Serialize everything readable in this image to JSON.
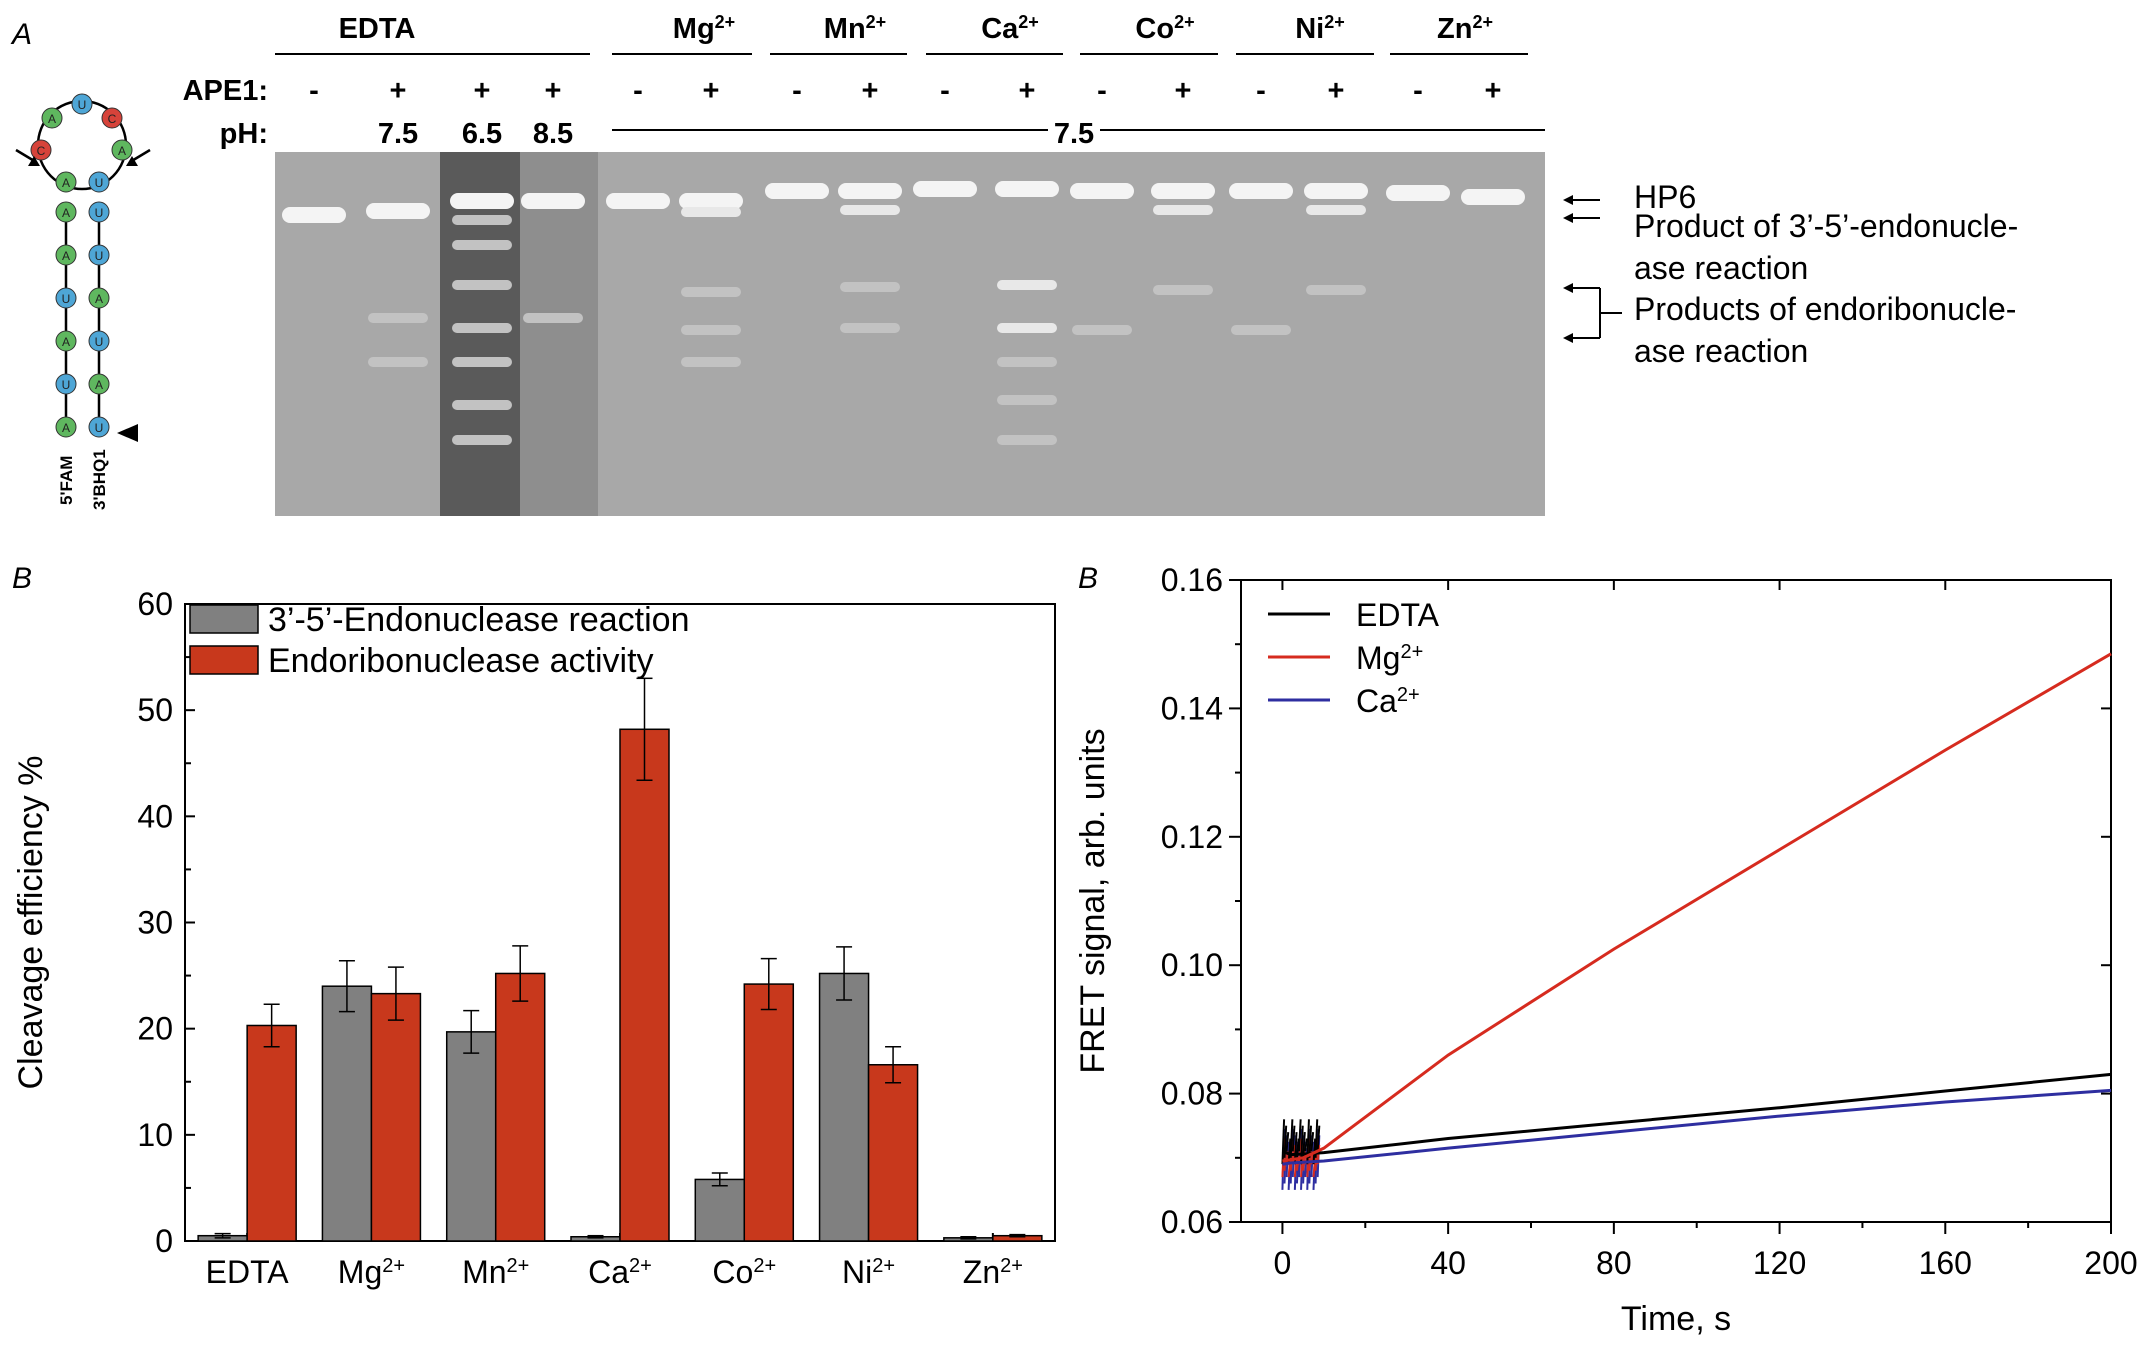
{
  "panelA": {
    "label": "A",
    "groups": [
      {
        "name": "EDTA",
        "sup": ""
      },
      {
        "name": "Mg",
        "sup": "2+"
      },
      {
        "name": "Mn",
        "sup": "2+"
      },
      {
        "name": "Ca",
        "sup": "2+"
      },
      {
        "name": "Co",
        "sup": "2+"
      },
      {
        "name": "Ni",
        "sup": "2+"
      },
      {
        "name": "Zn",
        "sup": "2+"
      }
    ],
    "ape1_label": "APE1:",
    "ph_label": "pH:",
    "ape1_marks": [
      "-",
      "+",
      "+",
      "+",
      "-",
      "+",
      "-",
      "+",
      "-",
      "+",
      "-",
      "+",
      "-",
      "+",
      "-",
      "+"
    ],
    "ph_marks": [
      "7.5",
      "6.5",
      "8.5"
    ],
    "ph_common": "7.5",
    "hairpin": {
      "five_prime": "5'FAM",
      "three_prime": "3'BHQ1"
    },
    "band_labels": {
      "hp6": "HP6",
      "product_3_5": [
        "Product of 3’-5’-endonucle-",
        "ase reaction"
      ],
      "product_endo": [
        "Products of endoribonucle-",
        "ase reaction"
      ]
    }
  },
  "chart_data": [
    {
      "type": "bar",
      "panel_label": "B",
      "title": "",
      "xlabel": "",
      "ylabel": "Cleavage efficiency %",
      "ylim": [
        0,
        60
      ],
      "yticks": [
        0,
        10,
        20,
        30,
        40,
        50,
        60
      ],
      "categories": [
        {
          "name": "EDTA",
          "sup": ""
        },
        {
          "name": "Mg",
          "sup": "2+"
        },
        {
          "name": "Mn",
          "sup": "2+"
        },
        {
          "name": "Ca",
          "sup": "2+"
        },
        {
          "name": "Co",
          "sup": "2+"
        },
        {
          "name": "Ni",
          "sup": "2+"
        },
        {
          "name": "Zn",
          "sup": "2+"
        }
      ],
      "series": [
        {
          "name": "3’-5’-Endonuclease reaction",
          "color": "#808080",
          "values": [
            0.5,
            24.0,
            19.7,
            0.4,
            5.8,
            25.2,
            0.3
          ],
          "errors": [
            0.2,
            2.4,
            2.0,
            0.1,
            0.6,
            2.5,
            0.1
          ]
        },
        {
          "name": "Endoribonuclease activity",
          "color": "#c8381c",
          "values": [
            20.3,
            23.3,
            25.2,
            48.2,
            24.2,
            16.6,
            0.5
          ],
          "errors": [
            2.0,
            2.5,
            2.6,
            4.8,
            2.4,
            1.7,
            0.1
          ]
        }
      ],
      "legend_position": "top-left"
    },
    {
      "type": "line",
      "panel_label": "B",
      "title": "",
      "xlabel": "Time, s",
      "ylabel": "FRET signal, arb. units",
      "xlim": [
        -10,
        200
      ],
      "ylim": [
        0.06,
        0.16
      ],
      "xticks": [
        0,
        40,
        80,
        120,
        160,
        200
      ],
      "yticks": [
        "0.06",
        "0.08",
        "0.10",
        "0.12",
        "0.14",
        "0.16"
      ],
      "series": [
        {
          "name": "EDTA",
          "sup": "",
          "color": "#000000",
          "x": [
            0,
            2,
            5,
            10,
            40,
            80,
            120,
            160,
            200
          ],
          "y": [
            0.071,
            0.0705,
            0.0706,
            0.0708,
            0.073,
            0.0754,
            0.0778,
            0.0804,
            0.083
          ]
        },
        {
          "name": "Mg",
          "sup": "2+",
          "color": "#d62b1f",
          "x": [
            0,
            2,
            5,
            10,
            40,
            80,
            120,
            160,
            200
          ],
          "y": [
            0.0695,
            0.0697,
            0.07,
            0.0715,
            0.086,
            0.1025,
            0.118,
            0.1335,
            0.1485
          ]
        },
        {
          "name": "Ca",
          "sup": "2+",
          "color": "#2e2ea0",
          "x": [
            0,
            2,
            5,
            10,
            40,
            80,
            120,
            160,
            200
          ],
          "y": [
            0.069,
            0.0692,
            0.0693,
            0.0695,
            0.0715,
            0.074,
            0.0765,
            0.0787,
            0.0805
          ]
        }
      ],
      "legend_position": "top-left"
    }
  ]
}
